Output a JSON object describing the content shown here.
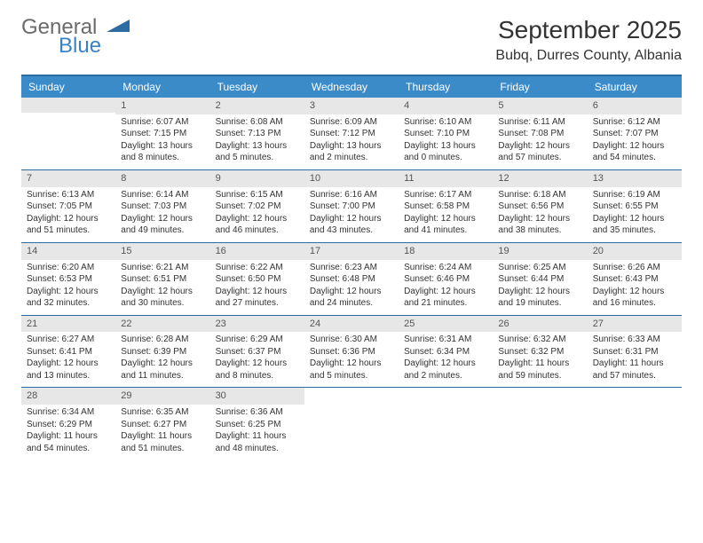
{
  "logo": {
    "line1": "General",
    "line2": "Blue",
    "triangle_color": "#2d6ca2"
  },
  "title": "September 2025",
  "location": "Bubq, Durres County, Albania",
  "colors": {
    "header_bg": "#3b8bc9",
    "header_text": "#ffffff",
    "border": "#2d6ca2",
    "daynum_bg": "#e7e7e7",
    "daynum_text": "#555555",
    "body_text": "#333333",
    "page_bg": "#ffffff"
  },
  "day_names": [
    "Sunday",
    "Monday",
    "Tuesday",
    "Wednesday",
    "Thursday",
    "Friday",
    "Saturday"
  ],
  "weeks": [
    [
      {
        "num": "",
        "lines": []
      },
      {
        "num": "1",
        "lines": [
          "Sunrise: 6:07 AM",
          "Sunset: 7:15 PM",
          "Daylight: 13 hours",
          "and 8 minutes."
        ]
      },
      {
        "num": "2",
        "lines": [
          "Sunrise: 6:08 AM",
          "Sunset: 7:13 PM",
          "Daylight: 13 hours",
          "and 5 minutes."
        ]
      },
      {
        "num": "3",
        "lines": [
          "Sunrise: 6:09 AM",
          "Sunset: 7:12 PM",
          "Daylight: 13 hours",
          "and 2 minutes."
        ]
      },
      {
        "num": "4",
        "lines": [
          "Sunrise: 6:10 AM",
          "Sunset: 7:10 PM",
          "Daylight: 13 hours",
          "and 0 minutes."
        ]
      },
      {
        "num": "5",
        "lines": [
          "Sunrise: 6:11 AM",
          "Sunset: 7:08 PM",
          "Daylight: 12 hours",
          "and 57 minutes."
        ]
      },
      {
        "num": "6",
        "lines": [
          "Sunrise: 6:12 AM",
          "Sunset: 7:07 PM",
          "Daylight: 12 hours",
          "and 54 minutes."
        ]
      }
    ],
    [
      {
        "num": "7",
        "lines": [
          "Sunrise: 6:13 AM",
          "Sunset: 7:05 PM",
          "Daylight: 12 hours",
          "and 51 minutes."
        ]
      },
      {
        "num": "8",
        "lines": [
          "Sunrise: 6:14 AM",
          "Sunset: 7:03 PM",
          "Daylight: 12 hours",
          "and 49 minutes."
        ]
      },
      {
        "num": "9",
        "lines": [
          "Sunrise: 6:15 AM",
          "Sunset: 7:02 PM",
          "Daylight: 12 hours",
          "and 46 minutes."
        ]
      },
      {
        "num": "10",
        "lines": [
          "Sunrise: 6:16 AM",
          "Sunset: 7:00 PM",
          "Daylight: 12 hours",
          "and 43 minutes."
        ]
      },
      {
        "num": "11",
        "lines": [
          "Sunrise: 6:17 AM",
          "Sunset: 6:58 PM",
          "Daylight: 12 hours",
          "and 41 minutes."
        ]
      },
      {
        "num": "12",
        "lines": [
          "Sunrise: 6:18 AM",
          "Sunset: 6:56 PM",
          "Daylight: 12 hours",
          "and 38 minutes."
        ]
      },
      {
        "num": "13",
        "lines": [
          "Sunrise: 6:19 AM",
          "Sunset: 6:55 PM",
          "Daylight: 12 hours",
          "and 35 minutes."
        ]
      }
    ],
    [
      {
        "num": "14",
        "lines": [
          "Sunrise: 6:20 AM",
          "Sunset: 6:53 PM",
          "Daylight: 12 hours",
          "and 32 minutes."
        ]
      },
      {
        "num": "15",
        "lines": [
          "Sunrise: 6:21 AM",
          "Sunset: 6:51 PM",
          "Daylight: 12 hours",
          "and 30 minutes."
        ]
      },
      {
        "num": "16",
        "lines": [
          "Sunrise: 6:22 AM",
          "Sunset: 6:50 PM",
          "Daylight: 12 hours",
          "and 27 minutes."
        ]
      },
      {
        "num": "17",
        "lines": [
          "Sunrise: 6:23 AM",
          "Sunset: 6:48 PM",
          "Daylight: 12 hours",
          "and 24 minutes."
        ]
      },
      {
        "num": "18",
        "lines": [
          "Sunrise: 6:24 AM",
          "Sunset: 6:46 PM",
          "Daylight: 12 hours",
          "and 21 minutes."
        ]
      },
      {
        "num": "19",
        "lines": [
          "Sunrise: 6:25 AM",
          "Sunset: 6:44 PM",
          "Daylight: 12 hours",
          "and 19 minutes."
        ]
      },
      {
        "num": "20",
        "lines": [
          "Sunrise: 6:26 AM",
          "Sunset: 6:43 PM",
          "Daylight: 12 hours",
          "and 16 minutes."
        ]
      }
    ],
    [
      {
        "num": "21",
        "lines": [
          "Sunrise: 6:27 AM",
          "Sunset: 6:41 PM",
          "Daylight: 12 hours",
          "and 13 minutes."
        ]
      },
      {
        "num": "22",
        "lines": [
          "Sunrise: 6:28 AM",
          "Sunset: 6:39 PM",
          "Daylight: 12 hours",
          "and 11 minutes."
        ]
      },
      {
        "num": "23",
        "lines": [
          "Sunrise: 6:29 AM",
          "Sunset: 6:37 PM",
          "Daylight: 12 hours",
          "and 8 minutes."
        ]
      },
      {
        "num": "24",
        "lines": [
          "Sunrise: 6:30 AM",
          "Sunset: 6:36 PM",
          "Daylight: 12 hours",
          "and 5 minutes."
        ]
      },
      {
        "num": "25",
        "lines": [
          "Sunrise: 6:31 AM",
          "Sunset: 6:34 PM",
          "Daylight: 12 hours",
          "and 2 minutes."
        ]
      },
      {
        "num": "26",
        "lines": [
          "Sunrise: 6:32 AM",
          "Sunset: 6:32 PM",
          "Daylight: 11 hours",
          "and 59 minutes."
        ]
      },
      {
        "num": "27",
        "lines": [
          "Sunrise: 6:33 AM",
          "Sunset: 6:31 PM",
          "Daylight: 11 hours",
          "and 57 minutes."
        ]
      }
    ],
    [
      {
        "num": "28",
        "lines": [
          "Sunrise: 6:34 AM",
          "Sunset: 6:29 PM",
          "Daylight: 11 hours",
          "and 54 minutes."
        ]
      },
      {
        "num": "29",
        "lines": [
          "Sunrise: 6:35 AM",
          "Sunset: 6:27 PM",
          "Daylight: 11 hours",
          "and 51 minutes."
        ]
      },
      {
        "num": "30",
        "lines": [
          "Sunrise: 6:36 AM",
          "Sunset: 6:25 PM",
          "Daylight: 11 hours",
          "and 48 minutes."
        ]
      },
      {
        "num": "",
        "lines": []
      },
      {
        "num": "",
        "lines": []
      },
      {
        "num": "",
        "lines": []
      },
      {
        "num": "",
        "lines": []
      }
    ]
  ]
}
